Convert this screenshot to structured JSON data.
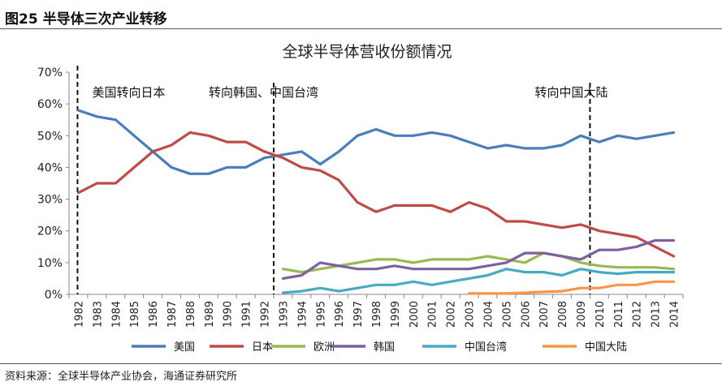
{
  "figure": {
    "title": "图25 半导体三次产业转移",
    "source": "资料来源：全球半导体产业协会，海通证券研究所"
  },
  "chart_data": {
    "type": "line",
    "title": "全球半导体营收份额情况",
    "xlabel": "",
    "ylabel": "",
    "ylim": [
      0,
      70
    ],
    "yticks": [
      "0%",
      "10%",
      "20%",
      "30%",
      "40%",
      "50%",
      "60%",
      "70%"
    ],
    "grid": false,
    "legend_position": "bottom",
    "x": [
      "1982",
      "1983",
      "1984",
      "1985",
      "1986",
      "1987",
      "1988",
      "1989",
      "1990",
      "1991",
      "1992",
      "1993",
      "1994",
      "1995",
      "1996",
      "1997",
      "1998",
      "1999",
      "2000",
      "2001",
      "2002",
      "2003",
      "2004",
      "2005",
      "2006",
      "2007",
      "2008",
      "2009",
      "2010",
      "2011",
      "2012",
      "2013",
      "2014"
    ],
    "series": [
      {
        "name": "美国",
        "color": "#4a7ebb",
        "values": [
          58,
          56,
          55,
          50,
          45,
          40,
          38,
          38,
          40,
          40,
          43,
          44,
          45,
          41,
          45,
          50,
          52,
          50,
          50,
          51,
          50,
          48,
          46,
          47,
          46,
          46,
          47,
          50,
          48,
          50,
          49,
          50,
          51
        ]
      },
      {
        "name": "日本",
        "color": "#be4b48",
        "values": [
          32,
          35,
          35,
          40,
          45,
          47,
          51,
          50,
          48,
          48,
          45,
          43,
          40,
          39,
          36,
          29,
          26,
          28,
          28,
          28,
          26,
          29,
          27,
          23,
          23,
          22,
          21,
          22,
          20,
          19,
          18,
          15,
          12
        ]
      },
      {
        "name": "欧洲",
        "color": "#98b954",
        "values": [
          null,
          null,
          null,
          null,
          null,
          null,
          null,
          null,
          null,
          null,
          null,
          8,
          7,
          8,
          9,
          10,
          11,
          11,
          10,
          11,
          11,
          11,
          12,
          11,
          10,
          13,
          12,
          10,
          9,
          8.5,
          8.5,
          8.5,
          8
        ]
      },
      {
        "name": "韩国",
        "color": "#7d60a0",
        "values": [
          null,
          null,
          null,
          null,
          null,
          null,
          null,
          null,
          null,
          null,
          null,
          5,
          6,
          10,
          9,
          8,
          8,
          9,
          8,
          8,
          8,
          8,
          9,
          10,
          13,
          13,
          12,
          11,
          14,
          14,
          15,
          17,
          17
        ]
      },
      {
        "name": "中国台湾",
        "color": "#46aac5",
        "values": [
          null,
          null,
          null,
          null,
          null,
          null,
          null,
          null,
          null,
          null,
          null,
          0.5,
          1,
          2,
          1,
          2,
          3,
          3,
          4,
          3,
          4,
          5,
          6,
          8,
          7,
          7,
          6,
          8,
          7,
          6.5,
          7,
          7,
          7
        ]
      },
      {
        "name": "中国大陆",
        "color": "#f79646",
        "values": [
          null,
          null,
          null,
          null,
          null,
          null,
          null,
          null,
          null,
          null,
          null,
          null,
          null,
          null,
          null,
          null,
          null,
          null,
          null,
          null,
          null,
          0.3,
          0.3,
          0.3,
          0.5,
          0.8,
          1,
          2,
          2,
          3,
          3,
          4,
          4
        ]
      }
    ],
    "annotations": [
      {
        "text": "美国转向日本",
        "at": "1982"
      },
      {
        "text": "转向韩国、中国台湾",
        "at": "1993"
      },
      {
        "text": "转向中国大陆",
        "at": "2009"
      }
    ]
  }
}
